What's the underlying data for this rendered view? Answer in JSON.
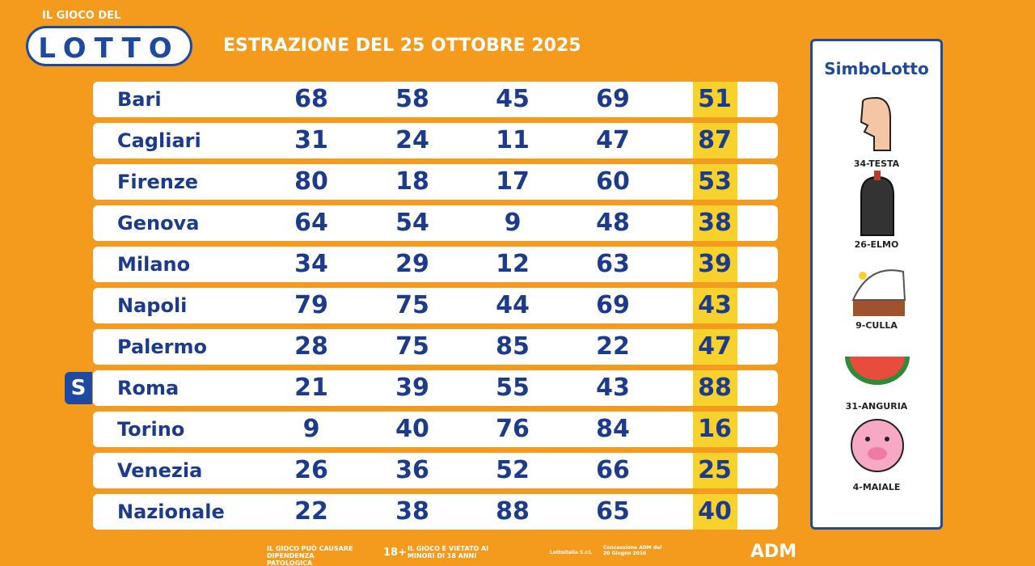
{
  "logo": {
    "top": "IL GIOCO DEL",
    "name": "LOTTO"
  },
  "title": "ESTRAZIONE DEL 25 OTTOBRE 2025",
  "marker": "S",
  "marker_row": 7,
  "table": {
    "rows": [
      [
        "Bari",
        68,
        58,
        45,
        69,
        51
      ],
      [
        "Cagliari",
        31,
        24,
        11,
        47,
        87
      ],
      [
        "Firenze",
        80,
        18,
        17,
        60,
        53
      ],
      [
        "Genova",
        64,
        54,
        9,
        48,
        38
      ],
      [
        "Milano",
        34,
        29,
        12,
        63,
        39
      ],
      [
        "Napoli",
        79,
        75,
        44,
        69,
        43
      ],
      [
        "Palermo",
        28,
        75,
        85,
        22,
        47
      ],
      [
        "Roma",
        21,
        39,
        55,
        43,
        88
      ],
      [
        "Torino",
        9,
        40,
        76,
        84,
        16
      ],
      [
        "Venezia",
        26,
        36,
        52,
        66,
        25
      ],
      [
        "Nazionale",
        22,
        38,
        88,
        65,
        40
      ]
    ]
  },
  "simbolotto": {
    "title": "SimboLotto",
    "symbols": [
      "34-TESTA",
      "26-ELMO",
      "9-CULLA",
      "31-ANGURIA",
      "4-MAIALE"
    ]
  },
  "footer": {
    "warning": "IL GIOCO PUÒ CAUSARE DIPENDENZA PATOLOGICA",
    "age": "18+",
    "minors": "IL GIOCO È VIETATO AI MINORI DI 18 ANNI",
    "operator": "Lottoitalia S.r.l.",
    "license": "Concessione ADM del 20 Giugno 2016",
    "adm": "ADM"
  }
}
